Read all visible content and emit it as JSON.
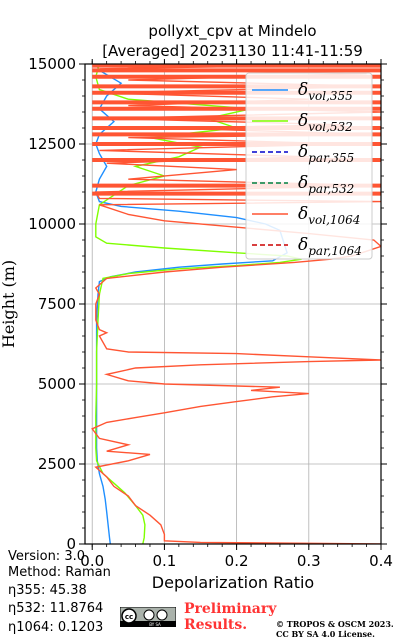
{
  "chart_data": {
    "type": "line",
    "title_line1": "pollyxt_cpv at Mindelo",
    "title_line2": "[Averaged] 20231130 11:41-11:59",
    "xlabel": "Depolarization Ratio",
    "ylabel": "Height (m)",
    "xlim": [
      -0.01,
      0.4
    ],
    "ylim": [
      0,
      15000
    ],
    "xticks": [
      0.0,
      0.1,
      0.2,
      0.3,
      0.4
    ],
    "xtick_labels": [
      "0.0",
      "0.1",
      "0.2",
      "0.3",
      "0.4"
    ],
    "yticks": [
      0,
      2500,
      5000,
      7500,
      10000,
      12500,
      15000
    ],
    "ytick_labels": [
      "0",
      "2500",
      "5000",
      "7500",
      "10000",
      "12500",
      "15000"
    ],
    "grid": true,
    "legend_position": "upper-right",
    "series": [
      {
        "name": "δvol,355",
        "legend_main": "δ",
        "legend_sub": "vol,355",
        "color": "#1f8fff",
        "style": "solid",
        "points": [
          [
            0.025,
            0
          ],
          [
            0.024,
            200
          ],
          [
            0.022,
            600
          ],
          [
            0.02,
            1000
          ],
          [
            0.018,
            1400
          ],
          [
            0.015,
            1800
          ],
          [
            0.01,
            2200
          ],
          [
            0.007,
            2600
          ],
          [
            0.006,
            3000
          ],
          [
            0.006,
            4000
          ],
          [
            0.006,
            5000
          ],
          [
            0.006,
            6000
          ],
          [
            0.006,
            7000
          ],
          [
            0.008,
            7800
          ],
          [
            0.01,
            8200
          ],
          [
            0.025,
            8350
          ],
          [
            0.06,
            8500
          ],
          [
            0.12,
            8650
          ],
          [
            0.18,
            8750
          ],
          [
            0.25,
            8850
          ],
          [
            0.27,
            9100
          ],
          [
            0.26,
            9800
          ],
          [
            0.24,
            10000
          ],
          [
            0.2,
            10200
          ],
          [
            0.12,
            10400
          ],
          [
            0.04,
            10550
          ],
          [
            0.01,
            10700
          ],
          [
            0.005,
            11000
          ],
          [
            0.01,
            11400
          ],
          [
            0.02,
            11800
          ],
          [
            0.01,
            12200
          ],
          [
            0.005,
            12500
          ],
          [
            0.01,
            12800
          ],
          [
            0.03,
            13200
          ],
          [
            0.01,
            13600
          ],
          [
            0.02,
            14000
          ],
          [
            0.04,
            14400
          ],
          [
            0.01,
            14800
          ],
          [
            0.005,
            15000
          ]
        ]
      },
      {
        "name": "δvol,532",
        "legend_main": "δ",
        "legend_sub": "vol,532",
        "color": "#7fff00",
        "style": "solid",
        "points": [
          [
            0.07,
            0
          ],
          [
            0.072,
            200
          ],
          [
            0.073,
            600
          ],
          [
            0.07,
            900
          ],
          [
            0.06,
            1200
          ],
          [
            0.045,
            1600
          ],
          [
            0.03,
            1900
          ],
          [
            0.015,
            2200
          ],
          [
            0.006,
            2600
          ],
          [
            0.005,
            3000
          ],
          [
            0.005,
            4000
          ],
          [
            0.006,
            5000
          ],
          [
            0.006,
            6000
          ],
          [
            0.008,
            7000
          ],
          [
            0.01,
            7800
          ],
          [
            0.015,
            8300
          ],
          [
            0.05,
            8450
          ],
          [
            0.12,
            8600
          ],
          [
            0.2,
            8700
          ],
          [
            0.26,
            8800
          ],
          [
            0.29,
            8900
          ],
          [
            0.27,
            9000
          ],
          [
            0.2,
            9100
          ],
          [
            0.1,
            9250
          ],
          [
            0.02,
            9400
          ],
          [
            0.005,
            9600
          ],
          [
            0.005,
            10000
          ],
          [
            0.01,
            10600
          ],
          [
            0.05,
            11200
          ],
          [
            0.1,
            11500
          ],
          [
            0.06,
            11800
          ],
          [
            0.12,
            12100
          ],
          [
            0.15,
            12400
          ],
          [
            0.08,
            12700
          ],
          [
            0.2,
            13000
          ],
          [
            0.16,
            13300
          ],
          [
            0.22,
            13600
          ],
          [
            0.05,
            13900
          ],
          [
            0.01,
            14200
          ],
          [
            0.005,
            14600
          ],
          [
            0.01,
            15000
          ]
        ]
      },
      {
        "name": "δpar,355",
        "legend_main": "δ",
        "legend_sub": "par,355",
        "color": "#0000cc",
        "style": "dashed",
        "points": []
      },
      {
        "name": "δpar,532",
        "legend_main": "δ",
        "legend_sub": "par,532",
        "color": "#008040",
        "style": "dashed",
        "points": []
      },
      {
        "name": "δvol,1064",
        "legend_main": "δ",
        "legend_sub": "vol,1064",
        "color": "#ff5533",
        "style": "solid",
        "points": [
          [
            0.4,
            0
          ],
          [
            0.15,
            50
          ],
          [
            0.1,
            100
          ],
          [
            0.1,
            200
          ],
          [
            0.1,
            300
          ],
          [
            0.095,
            600
          ],
          [
            0.08,
            900
          ],
          [
            0.06,
            1200
          ],
          [
            0.05,
            1500
          ],
          [
            0.03,
            1800
          ],
          [
            0.02,
            2100
          ],
          [
            0.005,
            2400
          ],
          [
            0.05,
            2600
          ],
          [
            0.08,
            2800
          ],
          [
            0.02,
            2900
          ],
          [
            0.05,
            3100
          ],
          [
            0.01,
            3300
          ],
          [
            0.0,
            3600
          ],
          [
            0.02,
            3800
          ],
          [
            0.06,
            3950
          ],
          [
            0.1,
            4100
          ],
          [
            0.15,
            4300
          ],
          [
            0.2,
            4450
          ],
          [
            0.25,
            4600
          ],
          [
            0.3,
            4700
          ],
          [
            0.22,
            4800
          ],
          [
            0.26,
            4900
          ],
          [
            0.1,
            5000
          ],
          [
            0.05,
            5100
          ],
          [
            0.02,
            5300
          ],
          [
            0.06,
            5500
          ],
          [
            0.15,
            5600
          ],
          [
            0.3,
            5700
          ],
          [
            0.4,
            5750
          ],
          [
            0.3,
            5850
          ],
          [
            0.2,
            5950
          ],
          [
            0.05,
            6000
          ],
          [
            0.02,
            6100
          ],
          [
            0.01,
            6500
          ],
          [
            0.02,
            6600
          ],
          [
            0.01,
            6700
          ],
          [
            0.005,
            7000
          ],
          [
            0.005,
            7500
          ],
          [
            0.01,
            7800
          ],
          [
            0.005,
            8000
          ],
          [
            0.02,
            8300
          ],
          [
            0.1,
            8500
          ],
          [
            0.18,
            8650
          ],
          [
            0.28,
            8800
          ],
          [
            0.33,
            8900
          ],
          [
            0.36,
            9000
          ],
          [
            0.38,
            9150
          ],
          [
            0.4,
            9300
          ],
          [
            0.39,
            9500
          ],
          [
            0.3,
            9700
          ],
          [
            0.2,
            9900
          ],
          [
            0.1,
            10100
          ],
          [
            0.05,
            10300
          ],
          [
            0.01,
            10600
          ],
          [
            0.4,
            10700
          ],
          [
            0.01,
            10800
          ],
          [
            0.005,
            11000
          ],
          [
            0.4,
            11200
          ],
          [
            0.05,
            11400
          ],
          [
            0.2,
            11700
          ],
          [
            0.02,
            11900
          ],
          [
            0.3,
            12100
          ],
          [
            0.01,
            12300
          ],
          [
            0.35,
            12500
          ],
          [
            0.05,
            12700
          ],
          [
            0.4,
            12800
          ],
          [
            0.1,
            13000
          ],
          [
            0.35,
            13100
          ],
          [
            0.02,
            13300
          ],
          [
            0.4,
            13500
          ],
          [
            0.05,
            13700
          ],
          [
            0.3,
            13900
          ],
          [
            0.01,
            14100
          ],
          [
            0.4,
            14300
          ],
          [
            0.05,
            14500
          ],
          [
            0.38,
            14700
          ],
          [
            0.01,
            14850
          ],
          [
            0.4,
            15000
          ]
        ],
        "hbars": [
          11200,
          12000,
          12500,
          12800,
          13000,
          13300,
          13600,
          13800,
          14100,
          14300,
          14600,
          14800,
          14950,
          10950
        ]
      },
      {
        "name": "δpar,1064",
        "legend_main": "δ",
        "legend_sub": "par,1064",
        "color": "#cc0000",
        "style": "dashed",
        "points": []
      }
    ]
  },
  "info": {
    "version": "Version: 3.0",
    "method": "Method: Raman",
    "eta355": "η355:  45.38",
    "eta532": "η532: 11.8764",
    "eta1064": "η1064: 0.1203"
  },
  "footer": {
    "preliminary_line1": "Preliminary",
    "preliminary_line2": "Results.",
    "copyright_line1": "© TROPOS & OSCM 2023.",
    "copyright_line2": "CC BY SA 4.0 License.",
    "cc_label": "cc",
    "cc_sub": "BY   SA"
  }
}
